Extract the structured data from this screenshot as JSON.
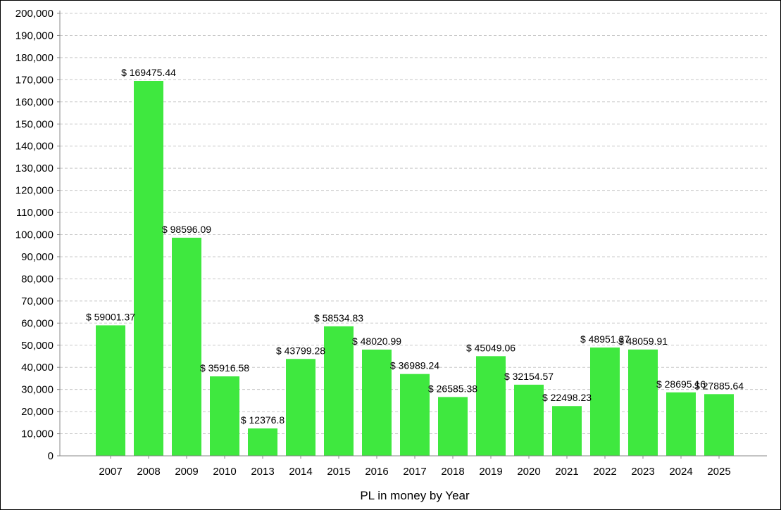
{
  "chart_data": {
    "type": "bar",
    "title": "",
    "xlabel": "PL in money by Year",
    "ylabel": "",
    "ylim": [
      0,
      200000
    ],
    "ytick_step": 10000,
    "grid": true,
    "bar_color": "#3fe83f",
    "grid_color": "#c8c8c8",
    "categories": [
      "2007",
      "2008",
      "2009",
      "2010",
      "2013",
      "2014",
      "2015",
      "2016",
      "2017",
      "2018",
      "2019",
      "2020",
      "2021",
      "2022",
      "2023",
      "2024",
      "2025"
    ],
    "values": [
      59001.37,
      169475.44,
      98596.09,
      35916.58,
      12376.8,
      43799.28,
      58534.83,
      48020.99,
      36989.24,
      26585.38,
      45049.06,
      32154.57,
      22498.23,
      48951.37,
      48059.91,
      28695.16,
      27885.64
    ],
    "data_labels": [
      "$ 59001.37",
      "$ 169475.44",
      "$ 98596.09",
      "$ 35916.58",
      "$ 12376.8",
      "$ 43799.28",
      "$ 58534.83",
      "$ 48020.99",
      "$ 36989.24",
      "$ 26585.38",
      "$ 45049.06",
      "$ 32154.57",
      "$ 22498.23",
      "$ 48951.37",
      "$ 48059.91",
      "$ 28695.16",
      "$ 27885.64"
    ]
  }
}
